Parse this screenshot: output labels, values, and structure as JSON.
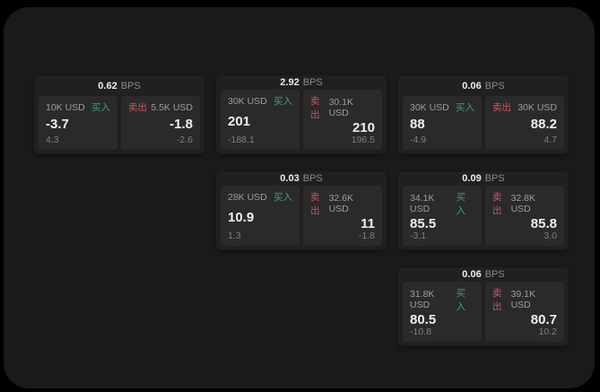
{
  "labels": {
    "buy": "买入",
    "sell": "卖出",
    "unit": "BPS"
  },
  "colors": {
    "background": "#000000",
    "panel": "#1a1a1a",
    "card": "#202020",
    "tile": "#2a2a2a",
    "buy_green": "#40a070",
    "sell_red": "#c95667"
  },
  "cards": [
    {
      "bps": "0.62",
      "buy": {
        "amount": "10K USD",
        "price": "-3.7",
        "delta": "4.3"
      },
      "sell": {
        "amount": "5.5K USD",
        "price": "-1.8",
        "delta": "-2.6"
      }
    },
    {
      "bps": "2.92",
      "buy": {
        "amount": "30K USD",
        "price": "201",
        "delta": "-188.1"
      },
      "sell": {
        "amount": "30.1K USD",
        "price": "210",
        "delta": "196.5"
      }
    },
    {
      "bps": "0.06",
      "buy": {
        "amount": "30K USD",
        "price": "88",
        "delta": "-4.9"
      },
      "sell": {
        "amount": "30K USD",
        "price": "88.2",
        "delta": "4.7"
      }
    },
    {
      "bps": "0.03",
      "buy": {
        "amount": "28K USD",
        "price": "10.9",
        "delta": "1.3"
      },
      "sell": {
        "amount": "32.6K USD",
        "price": "11",
        "delta": "-1.8"
      }
    },
    {
      "bps": "0.09",
      "buy": {
        "amount": "34.1K USD",
        "price": "85.5",
        "delta": "-3.1"
      },
      "sell": {
        "amount": "32.8K USD",
        "price": "85.8",
        "delta": "3.0"
      }
    },
    {
      "bps": "0.06",
      "buy": {
        "amount": "31.8K USD",
        "price": "80.5",
        "delta": "-10.8"
      },
      "sell": {
        "amount": "39.1K USD",
        "price": "80.7",
        "delta": "10.2"
      }
    }
  ]
}
